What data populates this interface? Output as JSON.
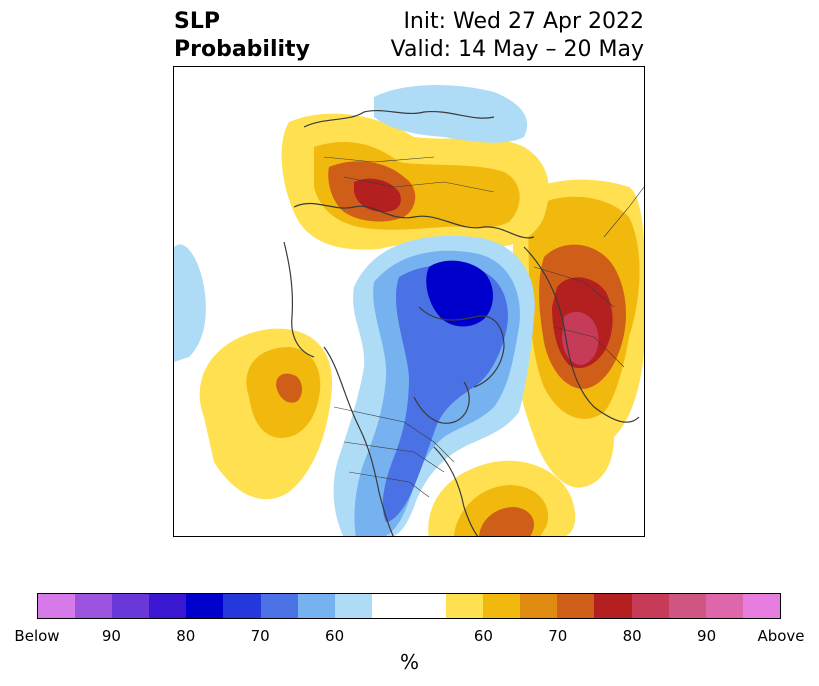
{
  "header": {
    "title_line1": "SLP",
    "title_line2": "Probability",
    "init_text": "Init: Wed 27 Apr 2022",
    "valid_text": "Valid: 14 May – 20 May"
  },
  "map": {
    "palette": {
      "below_60": "#aedcf7",
      "below_70": "#75b2ef",
      "below_80": "#4a72e5",
      "below_90": "#0000cc",
      "above_60": "#fee050",
      "above_70": "#f1b80e",
      "above_80": "#cf5f18",
      "above_90": "#b3201f",
      "above_95": "#c53b58",
      "land_lines": "#3a3a3a"
    }
  },
  "colorbar": {
    "unit_label": "%",
    "colors": [
      "#d77ae9",
      "#9c54e0",
      "#6a38d8",
      "#3a18d2",
      "#0000cc",
      "#2438db",
      "#4a72e5",
      "#75b2ef",
      "#aedcf7",
      "#ffffff",
      "#ffffff",
      "#fee050",
      "#f1b80e",
      "#df8a10",
      "#cf5f18",
      "#b3201f",
      "#c53b58",
      "#cf5683",
      "#de66aa",
      "#e87de0"
    ],
    "tick_labels": [
      "Below",
      "90",
      "80",
      "70",
      "60",
      "60",
      "70",
      "80",
      "90",
      "Above"
    ]
  }
}
